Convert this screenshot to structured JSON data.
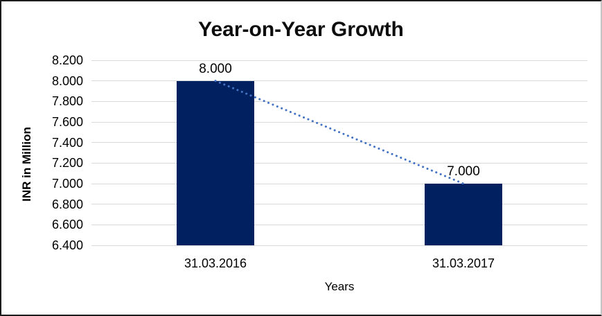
{
  "chart_data": {
    "type": "bar",
    "title": "Year-on-Year Growth",
    "xlabel": "Years",
    "ylabel": "INR in Million",
    "categories": [
      "31.03.2016",
      "31.03.2017"
    ],
    "values": [
      8.0,
      7.0
    ],
    "value_labels": [
      "8.000",
      "7.000"
    ],
    "ylim": [
      6.4,
      8.2
    ],
    "ytick_step": 0.2,
    "ytick_labels": [
      "6.400",
      "6.600",
      "6.800",
      "7.000",
      "7.200",
      "7.400",
      "7.600",
      "7.800",
      "8.000",
      "8.200"
    ],
    "grid": true,
    "legend_position": "none",
    "colors": {
      "bar": "#002060",
      "trendline": "#4472C4",
      "gridline": "#D9D9D9",
      "text": "#000000"
    },
    "trendline": {
      "style": "dotted",
      "from": [
        0,
        8.0
      ],
      "to": [
        1,
        7.0
      ]
    }
  }
}
